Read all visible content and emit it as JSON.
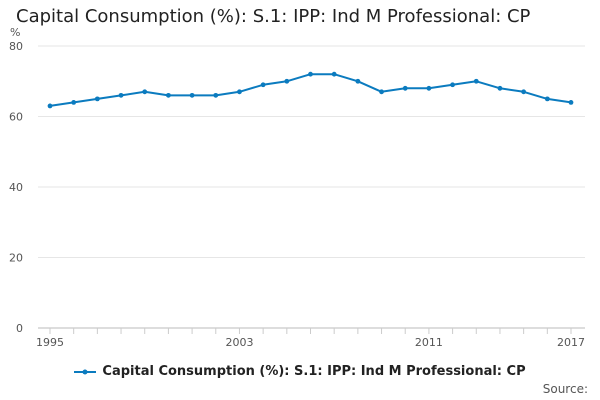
{
  "chart_data": {
    "type": "line",
    "title": "Capital Consumption (%): S.1: IPP: Ind M Professional: CP",
    "ylabel": "%",
    "xlabel": "",
    "ylim": [
      0,
      80
    ],
    "yticks": [
      0,
      20,
      40,
      60,
      80
    ],
    "xticks": [
      "1995",
      "2003",
      "2011",
      "2017"
    ],
    "x": [
      1995,
      1996,
      1997,
      1998,
      1999,
      2000,
      2001,
      2002,
      2003,
      2004,
      2005,
      2006,
      2007,
      2008,
      2009,
      2010,
      2011,
      2012,
      2013,
      2014,
      2015,
      2016,
      2017
    ],
    "series": [
      {
        "name": "Capital Consumption (%): S.1: IPP: Ind M Professional: CP",
        "color": "#0b7bbf",
        "values": [
          63,
          64,
          65,
          66,
          67,
          66,
          66,
          66,
          67,
          69,
          70,
          72,
          72,
          70,
          67,
          68,
          68,
          69,
          70,
          68,
          67,
          65,
          64
        ]
      }
    ],
    "grid": true,
    "legend_position": "bottom"
  },
  "footer": {
    "source_label": "Source:"
  }
}
